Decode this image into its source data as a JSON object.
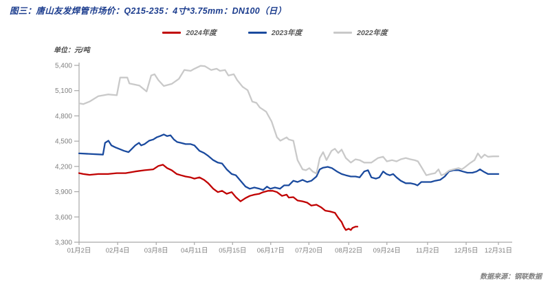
{
  "header": {
    "title": "图三：唐山友发焊管市场价：Q215-235：4寸*3.75mm：DN100（日）"
  },
  "footer": {
    "source": "数据来源：钢联数据"
  },
  "chart_data": {
    "type": "line",
    "title": "唐山友发焊管市场价：Q215-235：4寸*3.75mm：DN100（日）",
    "unit_label": "单位：元/吨",
    "ylabel": "元/吨",
    "ylim": [
      3300,
      5400
    ],
    "grid": false,
    "legend_position": "top-center",
    "axis_color": "#A6A6A6",
    "tick_text_color": "#7F7F7F",
    "y_ticks": [
      {
        "v": 5400,
        "label": "5,400"
      },
      {
        "v": 5100,
        "label": "5,100"
      },
      {
        "v": 4800,
        "label": "4,800"
      },
      {
        "v": 4500,
        "label": "4,500"
      },
      {
        "v": 4200,
        "label": "4,200"
      },
      {
        "v": 3900,
        "label": "3,900"
      },
      {
        "v": 3600,
        "label": "3,600"
      },
      {
        "v": 3300,
        "label": "3,300"
      }
    ],
    "x_ticks": [
      {
        "label": "01月2日",
        "pos": 0.0
      },
      {
        "label": "02月4日",
        "pos": 0.092
      },
      {
        "label": "03月8日",
        "pos": 0.184
      },
      {
        "label": "04月11日",
        "pos": 0.275
      },
      {
        "label": "05月15日",
        "pos": 0.366
      },
      {
        "label": "06月17日",
        "pos": 0.457
      },
      {
        "label": "07月20日",
        "pos": 0.548
      },
      {
        "label": "08月22日",
        "pos": 0.643
      },
      {
        "label": "09月24日",
        "pos": 0.734
      },
      {
        "label": "11月2日",
        "pos": 0.831
      },
      {
        "label": "12月5日",
        "pos": 0.923
      },
      {
        "label": "12月31日",
        "pos": 1.0
      }
    ],
    "series": [
      {
        "name": "2024年度",
        "color": "#C00000",
        "points": [
          [
            0.0,
            4120
          ],
          [
            0.01,
            4110
          ],
          [
            0.025,
            4100
          ],
          [
            0.046,
            4110
          ],
          [
            0.069,
            4110
          ],
          [
            0.09,
            4120
          ],
          [
            0.111,
            4120
          ],
          [
            0.134,
            4140
          ],
          [
            0.156,
            4155
          ],
          [
            0.177,
            4165
          ],
          [
            0.189,
            4205
          ],
          [
            0.2,
            4220
          ],
          [
            0.21,
            4180
          ],
          [
            0.221,
            4155
          ],
          [
            0.233,
            4110
          ],
          [
            0.243,
            4095
          ],
          [
            0.254,
            4080
          ],
          [
            0.266,
            4070
          ],
          [
            0.275,
            4055
          ],
          [
            0.287,
            4070
          ],
          [
            0.298,
            4040
          ],
          [
            0.308,
            4000
          ],
          [
            0.32,
            3935
          ],
          [
            0.331,
            3895
          ],
          [
            0.341,
            3910
          ],
          [
            0.352,
            3875
          ],
          [
            0.364,
            3895
          ],
          [
            0.374,
            3835
          ],
          [
            0.385,
            3785
          ],
          [
            0.397,
            3825
          ],
          [
            0.407,
            3850
          ],
          [
            0.418,
            3865
          ],
          [
            0.43,
            3875
          ],
          [
            0.439,
            3895
          ],
          [
            0.451,
            3910
          ],
          [
            0.462,
            3910
          ],
          [
            0.472,
            3895
          ],
          [
            0.484,
            3850
          ],
          [
            0.495,
            3865
          ],
          [
            0.5,
            3830
          ],
          [
            0.511,
            3835
          ],
          [
            0.521,
            3795
          ],
          [
            0.533,
            3785
          ],
          [
            0.544,
            3770
          ],
          [
            0.554,
            3735
          ],
          [
            0.566,
            3745
          ],
          [
            0.577,
            3715
          ],
          [
            0.587,
            3675
          ],
          [
            0.598,
            3665
          ],
          [
            0.61,
            3650
          ],
          [
            0.618,
            3590
          ],
          [
            0.626,
            3540
          ],
          [
            0.631,
            3485
          ],
          [
            0.636,
            3445
          ],
          [
            0.643,
            3460
          ],
          [
            0.648,
            3445
          ],
          [
            0.652,
            3470
          ],
          [
            0.659,
            3485
          ],
          [
            0.664,
            3485
          ]
        ]
      },
      {
        "name": "2023年度",
        "color": "#1A4A9E",
        "points": [
          [
            0.0,
            4355
          ],
          [
            0.057,
            4340
          ],
          [
            0.062,
            4480
          ],
          [
            0.07,
            4505
          ],
          [
            0.077,
            4450
          ],
          [
            0.087,
            4425
          ],
          [
            0.095,
            4410
          ],
          [
            0.107,
            4385
          ],
          [
            0.118,
            4370
          ],
          [
            0.126,
            4410
          ],
          [
            0.134,
            4450
          ],
          [
            0.143,
            4480
          ],
          [
            0.148,
            4450
          ],
          [
            0.156,
            4465
          ],
          [
            0.167,
            4505
          ],
          [
            0.177,
            4520
          ],
          [
            0.185,
            4545
          ],
          [
            0.193,
            4560
          ],
          [
            0.202,
            4580
          ],
          [
            0.21,
            4560
          ],
          [
            0.218,
            4570
          ],
          [
            0.226,
            4520
          ],
          [
            0.234,
            4490
          ],
          [
            0.243,
            4480
          ],
          [
            0.254,
            4465
          ],
          [
            0.266,
            4465
          ],
          [
            0.275,
            4450
          ],
          [
            0.287,
            4385
          ],
          [
            0.298,
            4360
          ],
          [
            0.308,
            4325
          ],
          [
            0.32,
            4275
          ],
          [
            0.331,
            4245
          ],
          [
            0.341,
            4235
          ],
          [
            0.352,
            4165
          ],
          [
            0.364,
            4110
          ],
          [
            0.374,
            4095
          ],
          [
            0.385,
            4030
          ],
          [
            0.397,
            3960
          ],
          [
            0.407,
            3935
          ],
          [
            0.418,
            3950
          ],
          [
            0.43,
            3935
          ],
          [
            0.439,
            3920
          ],
          [
            0.448,
            3960
          ],
          [
            0.456,
            3935
          ],
          [
            0.467,
            3950
          ],
          [
            0.479,
            3935
          ],
          [
            0.489,
            3975
          ],
          [
            0.5,
            3975
          ],
          [
            0.511,
            4030
          ],
          [
            0.521,
            4015
          ],
          [
            0.533,
            4040
          ],
          [
            0.544,
            4015
          ],
          [
            0.554,
            4030
          ],
          [
            0.566,
            4080
          ],
          [
            0.574,
            4165
          ],
          [
            0.582,
            4185
          ],
          [
            0.593,
            4195
          ],
          [
            0.603,
            4180
          ],
          [
            0.615,
            4140
          ],
          [
            0.626,
            4110
          ],
          [
            0.636,
            4095
          ],
          [
            0.648,
            4080
          ],
          [
            0.659,
            4080
          ],
          [
            0.669,
            4070
          ],
          [
            0.68,
            4140
          ],
          [
            0.689,
            4155
          ],
          [
            0.697,
            4070
          ],
          [
            0.708,
            4055
          ],
          [
            0.716,
            4070
          ],
          [
            0.725,
            4140
          ],
          [
            0.733,
            4110
          ],
          [
            0.741,
            4095
          ],
          [
            0.749,
            4110
          ],
          [
            0.757,
            4070
          ],
          [
            0.767,
            4030
          ],
          [
            0.779,
            4000
          ],
          [
            0.79,
            4000
          ],
          [
            0.8,
            3990
          ],
          [
            0.807,
            3975
          ],
          [
            0.816,
            4015
          ],
          [
            0.828,
            4015
          ],
          [
            0.839,
            4015
          ],
          [
            0.849,
            4030
          ],
          [
            0.861,
            4040
          ],
          [
            0.872,
            4080
          ],
          [
            0.882,
            4140
          ],
          [
            0.893,
            4155
          ],
          [
            0.905,
            4155
          ],
          [
            0.915,
            4140
          ],
          [
            0.926,
            4125
          ],
          [
            0.938,
            4125
          ],
          [
            0.948,
            4140
          ],
          [
            0.956,
            4165
          ],
          [
            0.964,
            4140
          ],
          [
            0.975,
            4110
          ],
          [
            0.987,
            4110
          ],
          [
            1.0,
            4110
          ]
        ]
      },
      {
        "name": "2022年度",
        "color": "#C9C9C9",
        "points": [
          [
            0.0,
            4950
          ],
          [
            0.01,
            4940
          ],
          [
            0.025,
            4970
          ],
          [
            0.046,
            5035
          ],
          [
            0.069,
            5055
          ],
          [
            0.09,
            5045
          ],
          [
            0.098,
            5255
          ],
          [
            0.115,
            5255
          ],
          [
            0.12,
            5185
          ],
          [
            0.144,
            5160
          ],
          [
            0.161,
            5090
          ],
          [
            0.172,
            5280
          ],
          [
            0.18,
            5295
          ],
          [
            0.189,
            5225
          ],
          [
            0.202,
            5155
          ],
          [
            0.221,
            5180
          ],
          [
            0.238,
            5240
          ],
          [
            0.251,
            5345
          ],
          [
            0.266,
            5335
          ],
          [
            0.275,
            5360
          ],
          [
            0.29,
            5395
          ],
          [
            0.3,
            5390
          ],
          [
            0.315,
            5345
          ],
          [
            0.328,
            5360
          ],
          [
            0.336,
            5335
          ],
          [
            0.348,
            5345
          ],
          [
            0.356,
            5280
          ],
          [
            0.369,
            5295
          ],
          [
            0.377,
            5225
          ],
          [
            0.39,
            5145
          ],
          [
            0.402,
            5105
          ],
          [
            0.413,
            4970
          ],
          [
            0.423,
            4955
          ],
          [
            0.431,
            4900
          ],
          [
            0.446,
            4850
          ],
          [
            0.459,
            4735
          ],
          [
            0.472,
            4545
          ],
          [
            0.48,
            4505
          ],
          [
            0.495,
            4545
          ],
          [
            0.5,
            4520
          ],
          [
            0.511,
            4505
          ],
          [
            0.521,
            4275
          ],
          [
            0.533,
            4165
          ],
          [
            0.541,
            4155
          ],
          [
            0.549,
            4180
          ],
          [
            0.557,
            4140
          ],
          [
            0.566,
            4115
          ],
          [
            0.574,
            4300
          ],
          [
            0.582,
            4370
          ],
          [
            0.59,
            4275
          ],
          [
            0.602,
            4385
          ],
          [
            0.61,
            4410
          ],
          [
            0.618,
            4360
          ],
          [
            0.626,
            4400
          ],
          [
            0.636,
            4300
          ],
          [
            0.648,
            4245
          ],
          [
            0.659,
            4285
          ],
          [
            0.669,
            4275
          ],
          [
            0.68,
            4245
          ],
          [
            0.697,
            4245
          ],
          [
            0.713,
            4300
          ],
          [
            0.725,
            4315
          ],
          [
            0.734,
            4260
          ],
          [
            0.746,
            4275
          ],
          [
            0.757,
            4260
          ],
          [
            0.767,
            4285
          ],
          [
            0.779,
            4300
          ],
          [
            0.79,
            4285
          ],
          [
            0.8,
            4275
          ],
          [
            0.808,
            4260
          ],
          [
            0.816,
            4195
          ],
          [
            0.828,
            4095
          ],
          [
            0.839,
            4110
          ],
          [
            0.849,
            4120
          ],
          [
            0.857,
            4165
          ],
          [
            0.864,
            4095
          ],
          [
            0.872,
            4110
          ],
          [
            0.882,
            4150
          ],
          [
            0.893,
            4165
          ],
          [
            0.905,
            4180
          ],
          [
            0.913,
            4165
          ],
          [
            0.921,
            4195
          ],
          [
            0.931,
            4235
          ],
          [
            0.943,
            4275
          ],
          [
            0.951,
            4355
          ],
          [
            0.959,
            4300
          ],
          [
            0.967,
            4340
          ],
          [
            0.975,
            4315
          ],
          [
            0.987,
            4320
          ],
          [
            1.0,
            4320
          ]
        ]
      }
    ]
  }
}
